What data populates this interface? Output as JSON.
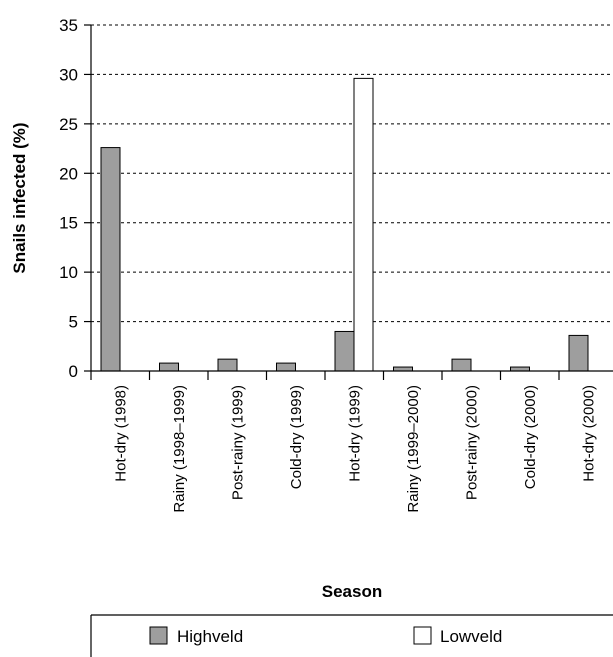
{
  "chart_data": {
    "type": "bar",
    "categories": [
      "Hot-dry (1998)",
      "Rainy (1998–1999)",
      "Post-rainy (1999)",
      "Cold-dry (1999)",
      "Hot-dry (1999)",
      "Rainy (1999–2000)",
      "Post-rainy (2000)",
      "Cold-dry (2000)",
      "Hot-dry (2000)"
    ],
    "series": [
      {
        "name": "Highveld",
        "color": "#9e9e9e",
        "values": [
          22.6,
          0.8,
          1.2,
          0.8,
          4.0,
          0.4,
          1.2,
          0.4,
          3.6
        ]
      },
      {
        "name": "Lowveld",
        "color": "#ffffff",
        "values": [
          0,
          0,
          0,
          0,
          29.6,
          0,
          0,
          0,
          0
        ]
      }
    ],
    "xlabel": "Season",
    "ylabel": "Snails infected (%)",
    "ylim": [
      0,
      35
    ],
    "yticks": [
      0,
      5,
      10,
      15,
      20,
      25,
      30,
      35
    ],
    "grid": "horizontal dashed",
    "legend_position": "bottom"
  }
}
